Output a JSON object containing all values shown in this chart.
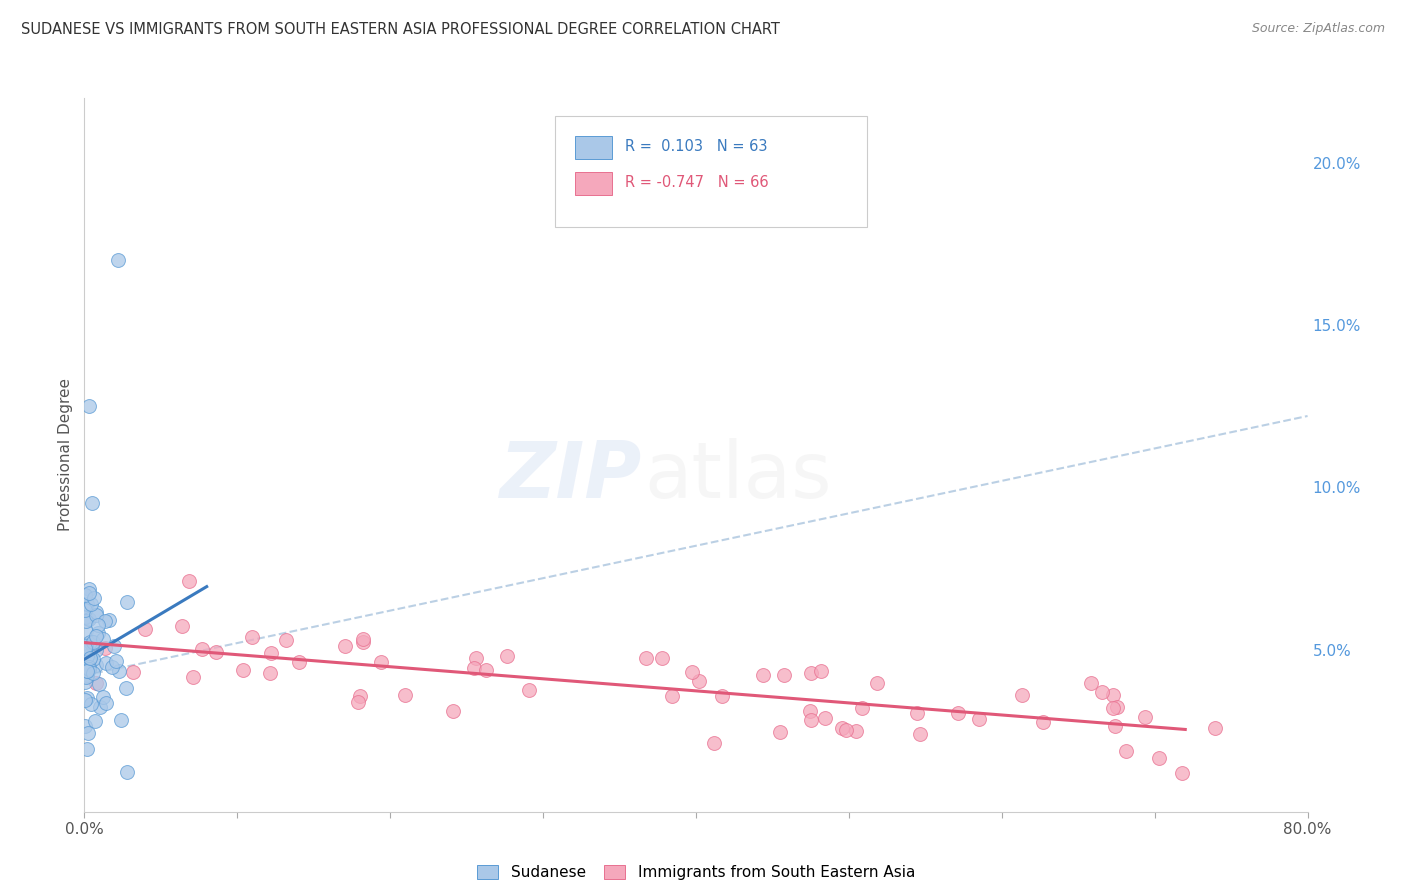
{
  "title": "SUDANESE VS IMMIGRANTS FROM SOUTH EASTERN ASIA PROFESSIONAL DEGREE CORRELATION CHART",
  "source": "Source: ZipAtlas.com",
  "ylabel": "Professional Degree",
  "right_yticklabels": [
    "",
    "5.0%",
    "10.0%",
    "15.0%",
    "20.0%"
  ],
  "right_yticks": [
    0.0,
    0.05,
    0.1,
    0.15,
    0.2
  ],
  "sudanese_color": "#aac8e8",
  "sea_color": "#f5a8bc",
  "sudanese_edge_color": "#5b9bd5",
  "sea_edge_color": "#e87090",
  "sudanese_trend_color": "#3a7abf",
  "sea_trend_color": "#e05878",
  "dashed_color": "#b0c8e0",
  "background_color": "#ffffff",
  "grid_color": "#dddddd",
  "xlim": [
    0.0,
    0.8
  ],
  "ylim": [
    0.0,
    0.22
  ],
  "title_color": "#333333",
  "source_color": "#888888",
  "right_axis_color": "#5599dd",
  "legend_text_blue": "R =  0.103   N = 63",
  "legend_text_pink": "R = -0.747   N = 66"
}
